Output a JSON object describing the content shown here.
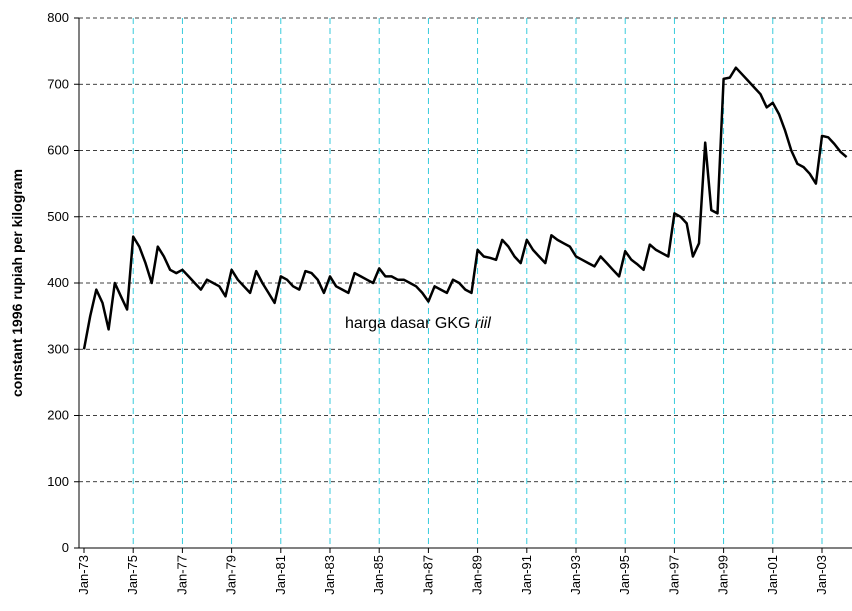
{
  "chart_data": {
    "type": "line",
    "y_label": "constant 1996 rupiah per kilogram",
    "annotation": "harga dasar GKG",
    "annotation_italic": "riil",
    "categories": [
      "Jan-73",
      null,
      null,
      null,
      null,
      null,
      null,
      null,
      "Jan-75",
      null,
      null,
      null,
      null,
      null,
      null,
      null,
      "Jan-77",
      null,
      null,
      null,
      null,
      null,
      null,
      null,
      "Jan-79",
      null,
      null,
      null,
      null,
      null,
      null,
      null,
      "Jan-81",
      null,
      null,
      null,
      null,
      null,
      null,
      null,
      "Jan-83",
      null,
      null,
      null,
      null,
      null,
      null,
      null,
      "Jan-85",
      null,
      null,
      null,
      null,
      null,
      null,
      null,
      "Jan-87",
      null,
      null,
      null,
      null,
      null,
      null,
      null,
      "Jan-89",
      null,
      null,
      null,
      null,
      null,
      null,
      null,
      "Jan-91",
      null,
      null,
      null,
      null,
      null,
      null,
      null,
      "Jan-93",
      null,
      null,
      null,
      null,
      null,
      null,
      null,
      "Jan-95",
      null,
      null,
      null,
      null,
      null,
      null,
      null,
      "Jan-97",
      null,
      null,
      null,
      null,
      null,
      null,
      null,
      "Jan-99",
      null,
      null,
      null,
      null,
      null,
      null,
      null,
      "Jan-01",
      null,
      null,
      null,
      null,
      null,
      null,
      null,
      "Jan-03",
      null,
      null,
      null,
      null
    ],
    "series": [
      {
        "name": "harga dasar GKG riil",
        "color": "#000000",
        "values": [
          300,
          350,
          390,
          370,
          330,
          400,
          380,
          360,
          470,
          455,
          430,
          400,
          455,
          440,
          420,
          415,
          420,
          410,
          400,
          390,
          405,
          400,
          395,
          380,
          420,
          405,
          395,
          385,
          418,
          400,
          385,
          370,
          410,
          405,
          395,
          390,
          418,
          415,
          405,
          385,
          410,
          395,
          390,
          385,
          415,
          410,
          405,
          400,
          422,
          410,
          410,
          405,
          405,
          400,
          395,
          385,
          372,
          395,
          390,
          385,
          405,
          400,
          390,
          385,
          450,
          440,
          438,
          435,
          465,
          455,
          440,
          430,
          465,
          450,
          440,
          430,
          472,
          465,
          460,
          455,
          440,
          435,
          430,
          425,
          440,
          430,
          420,
          410,
          448,
          435,
          428,
          420,
          458,
          450,
          445,
          440,
          505,
          500,
          490,
          440,
          460,
          612,
          510,
          505,
          708,
          710,
          725,
          715,
          705,
          695,
          685,
          665,
          672,
          655,
          630,
          600,
          580,
          575,
          565,
          550,
          622,
          620,
          610,
          598,
          590
        ]
      }
    ],
    "ylim": [
      0,
      800
    ],
    "yticks": [
      0,
      100,
      200,
      300,
      400,
      500,
      600,
      700,
      800
    ],
    "grid": true
  }
}
